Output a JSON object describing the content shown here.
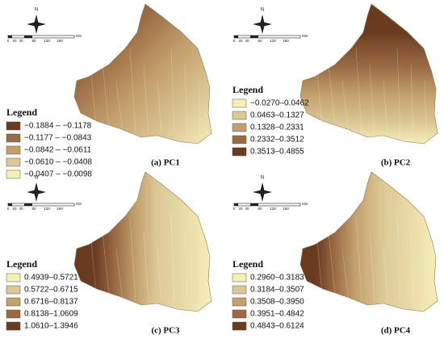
{
  "north": "N",
  "scale": {
    "labels": [
      "0",
      "20",
      "40",
      "80",
      "120",
      "160"
    ],
    "unit": "KM"
  },
  "panels": [
    {
      "caption": "(a) PC1",
      "legend": {
        "title": "Legend",
        "items": [
          {
            "label": "−0.1884 – −0.1178",
            "color": "#6b3b20"
          },
          {
            "label": "−0.1177 – −0.0843",
            "color": "#9a6b43"
          },
          {
            "label": "−0.0842 – −0.0611",
            "color": "#c3a06c"
          },
          {
            "label": "−0.0610 – −0.0408",
            "color": "#dcc895"
          },
          {
            "label": "−0.0407 – −0.0098",
            "color": "#f6efb9"
          }
        ]
      }
    },
    {
      "caption": "(b) PC2",
      "legend": {
        "title": "Legend",
        "items": [
          {
            "label": "−0.0270–0.0462",
            "color": "#f6efb9"
          },
          {
            "label": "0.0463–0.1327",
            "color": "#dcc895"
          },
          {
            "label": "0.1328–0.2331",
            "color": "#c3a06c"
          },
          {
            "label": "0.2332–0.3512",
            "color": "#9a6b43"
          },
          {
            "label": "0.3513–0.4855",
            "color": "#6b3b20"
          }
        ]
      }
    },
    {
      "caption": "(c) PC3",
      "legend": {
        "title": "Legend",
        "items": [
          {
            "label": "0.4939–0.5721",
            "color": "#f6efb9"
          },
          {
            "label": "0.5722–0.6715",
            "color": "#dcc895"
          },
          {
            "label": "0.6716–0.8137",
            "color": "#c3a06c"
          },
          {
            "label": "0.8138–1.0609",
            "color": "#9a6b43"
          },
          {
            "label": "1.0610–1.3946",
            "color": "#6b3b20"
          }
        ]
      }
    },
    {
      "caption": "(d) PC4",
      "legend": {
        "title": "Legend",
        "items": [
          {
            "label": "0.2960–0.3183",
            "color": "#f6efb9"
          },
          {
            "label": "0.3184–0.3507",
            "color": "#dcc895"
          },
          {
            "label": "0.3508–0.3950",
            "color": "#c3a06c"
          },
          {
            "label": "0.3951–0.4842",
            "color": "#9a6b43"
          },
          {
            "label": "0.4843–0.6124",
            "color": "#6b3b20"
          }
        ]
      }
    }
  ]
}
